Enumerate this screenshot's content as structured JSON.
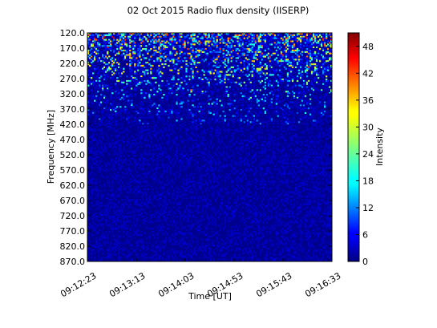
{
  "chart_data": {
    "type": "heatmap",
    "title": "02 Oct 2015 Radio flux density (IISERP)",
    "xlabel": "Time [UT]",
    "ylabel": "Frequency [MHz]",
    "colorbar_label": "Intensity",
    "colormap": "jet",
    "x_tick_labels": [
      "09:12:23",
      "09:13:13",
      "09:14:03",
      "09:14:53",
      "09:15:43",
      "09:16:33"
    ],
    "y_tick_labels": [
      "120.0",
      "170.0",
      "220.0",
      "270.0",
      "320.0",
      "370.0",
      "420.0",
      "470.0",
      "520.0",
      "570.0",
      "620.0",
      "670.0",
      "720.0",
      "770.0",
      "820.0",
      "870.0"
    ],
    "x_range": [
      "09:12:23",
      "09:16:33"
    ],
    "y_range_mhz": [
      120.0,
      870.0
    ],
    "intensity_range": [
      0,
      51
    ],
    "colorbar_ticks": [
      0,
      6,
      12,
      18,
      24,
      30,
      36,
      42,
      48
    ],
    "pattern": {
      "background_intensity": 2,
      "bursty_band_mhz": [
        120.0,
        420.0
      ],
      "burst_peak_intensity": 48,
      "quiet_band_mhz": [
        420.0,
        870.0
      ]
    }
  }
}
